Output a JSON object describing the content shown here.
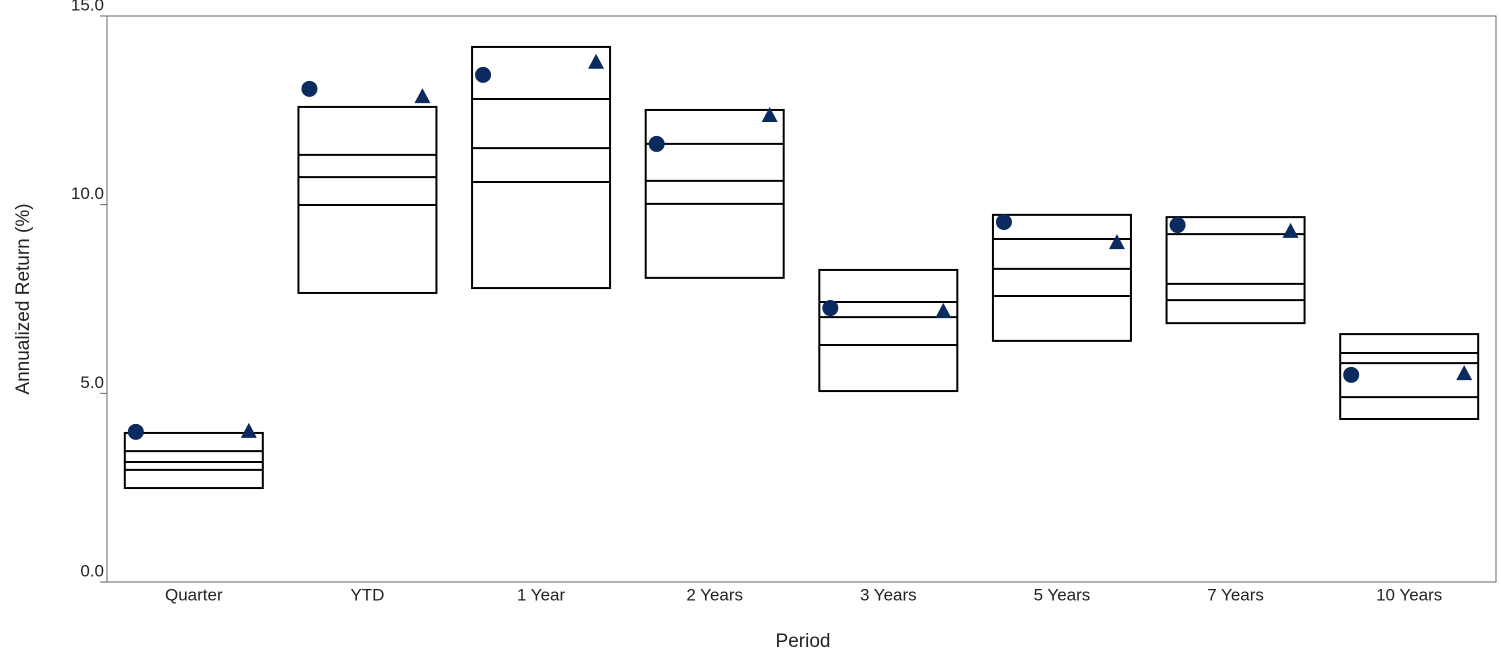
{
  "chart_data": {
    "type": "floating_box",
    "x_label": "Period",
    "y_label": "Annualized Return (%)",
    "categories": [
      "Quarter",
      "YTD",
      "1 Year",
      "2 Years",
      "3 Years",
      "5 Years",
      "7 Years",
      "10 Years"
    ],
    "ranges": {
      "top": [
        3.95,
        12.59,
        14.18,
        12.51,
        8.27,
        9.73,
        9.67,
        6.57
      ],
      "upper": [
        3.47,
        11.32,
        12.8,
        11.61,
        7.42,
        9.09,
        9.22,
        6.07
      ],
      "median": [
        3.18,
        10.73,
        11.5,
        10.63,
        7.02,
        8.3,
        7.9,
        5.8
      ],
      "lower": [
        2.97,
        9.99,
        10.6,
        10.02,
        6.28,
        7.58,
        7.47,
        4.9
      ],
      "bottom": [
        2.49,
        7.66,
        7.79,
        8.06,
        5.06,
        6.39,
        6.86,
        4.32
      ]
    },
    "markers": [
      {
        "shape": "circle",
        "color": "#0b2a5e",
        "values": [
          3.98,
          13.07,
          13.44,
          11.61,
          7.26,
          9.54,
          9.46,
          5.49
        ]
      },
      {
        "shape": "triangle",
        "color": "#0b2a5e",
        "values": [
          3.98,
          12.85,
          13.76,
          12.35,
          7.16,
          8.98,
          9.28,
          5.51
        ]
      }
    ],
    "ylim": [
      0,
      15
    ],
    "yticks": [
      {
        "value": 0,
        "label": "0.0"
      },
      {
        "value": 5,
        "label": "5.0"
      },
      {
        "value": 10,
        "label": "10.0"
      },
      {
        "value": 15,
        "label": "15.0"
      }
    ]
  }
}
